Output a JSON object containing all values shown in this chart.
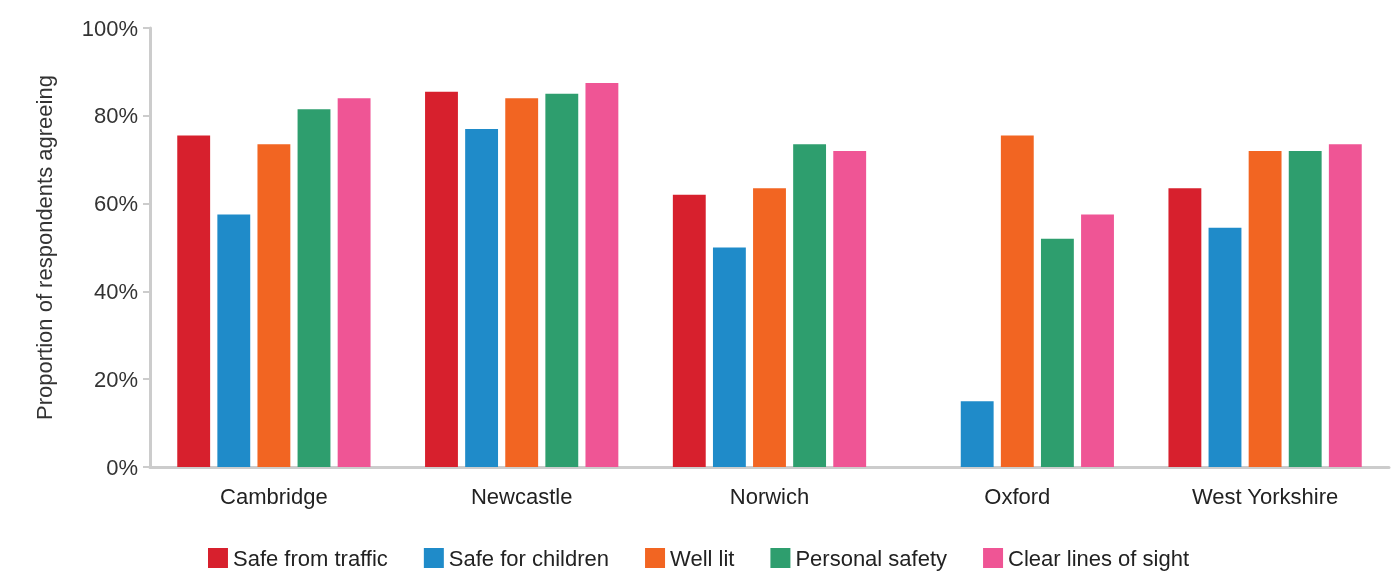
{
  "chart_data": {
    "type": "bar",
    "ylabel": "Proportion of respondents agreeing",
    "categories": [
      "Cambridge",
      "Newcastle",
      "Norwich",
      "Oxford",
      "West Yorkshire"
    ],
    "series": [
      {
        "name": "Safe from traffic",
        "color": "#d7202d",
        "values": [
          75.5,
          85.5,
          62,
          null,
          63.5
        ]
      },
      {
        "name": "Safe for children",
        "color": "#1f8bc9",
        "values": [
          57.5,
          77,
          50,
          15,
          54.5
        ]
      },
      {
        "name": "Well lit",
        "color": "#f26522",
        "values": [
          73.5,
          84,
          63.5,
          75.5,
          72
        ]
      },
      {
        "name": "Personal safety",
        "color": "#2e9e6e",
        "values": [
          81.5,
          85,
          73.5,
          52,
          72
        ]
      },
      {
        "name": "Clear lines of sight",
        "color": "#ef5595",
        "values": [
          84,
          87.5,
          72,
          57.5,
          73.5
        ]
      }
    ],
    "ylim": [
      0,
      100
    ],
    "yticks": [
      {
        "value": 0,
        "label": "0%"
      },
      {
        "value": 20,
        "label": "20%"
      },
      {
        "value": 40,
        "label": "40%"
      },
      {
        "value": 60,
        "label": "60%"
      },
      {
        "value": 80,
        "label": "80%"
      },
      {
        "value": 100,
        "label": "100%"
      }
    ],
    "grid": false,
    "legend": "bottom"
  }
}
